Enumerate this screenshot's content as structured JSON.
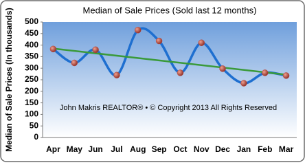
{
  "chart_data": {
    "type": "line",
    "title": "Median of Sale Prices (Sold last 12 months)",
    "y_label": "Median of Sale Prices (In thousands)",
    "annotation": "John Makris REALTOR® • © Copyright 2013 All Rights Reserved",
    "categories": [
      "Apr",
      "May",
      "Jun",
      "Jul",
      "Aug",
      "Sep",
      "Oct",
      "Nov",
      "Dec",
      "Jan",
      "Feb",
      "Mar"
    ],
    "series": [
      {
        "color": "#1e6fd0",
        "marker_color": "#b8463c",
        "values": [
          383,
          323,
          380,
          270,
          465,
          418,
          280,
          410,
          298,
          235,
          280,
          268
        ]
      }
    ],
    "trendline": {
      "color": "#3a9a3a",
      "values": [
        385,
        272
      ]
    },
    "ylim": [
      0,
      500
    ],
    "yticks": [
      0,
      50,
      100,
      150,
      200,
      250,
      300,
      350,
      400,
      450,
      500
    ]
  }
}
